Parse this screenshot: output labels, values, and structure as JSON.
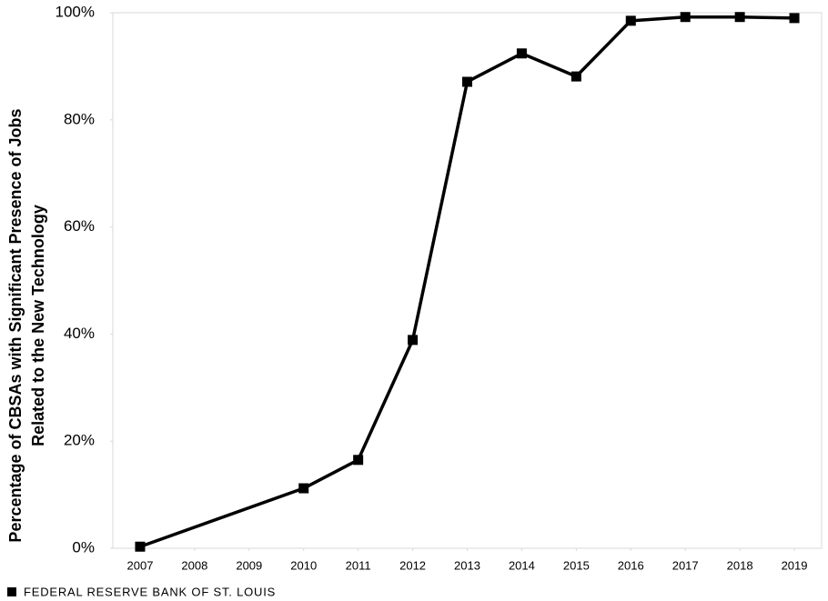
{
  "chart_data": {
    "type": "line",
    "y_label": [
      "Percentage of CBSAs with Significant Presence of Jobs",
      "Related to the New Technology"
    ],
    "x": [
      2007,
      2010,
      2011,
      2012,
      2013,
      2014,
      2015,
      2016,
      2017,
      2018,
      2019
    ],
    "values": [
      0.3,
      11.2,
      16.5,
      38.9,
      87.1,
      92.4,
      88.1,
      98.5,
      99.2,
      99.2,
      99.0
    ],
    "color": "#000000",
    "xlim": [
      2006.5,
      2019.5
    ],
    "xticks": [
      2007,
      2008,
      2009,
      2010,
      2011,
      2012,
      2013,
      2014,
      2015,
      2016,
      2017,
      2018,
      2019
    ],
    "ylim": [
      0,
      100
    ],
    "yticks": [
      {
        "value": 0,
        "label": "0%"
      },
      {
        "value": 20,
        "label": "20%"
      },
      {
        "value": 40,
        "label": "40%"
      },
      {
        "value": 60,
        "label": "60%"
      },
      {
        "value": 80,
        "label": "80%"
      },
      {
        "value": 100,
        "label": "100%"
      }
    ],
    "grid": false,
    "source": "FEDERAL RESERVE BANK OF ST. LOUIS"
  }
}
